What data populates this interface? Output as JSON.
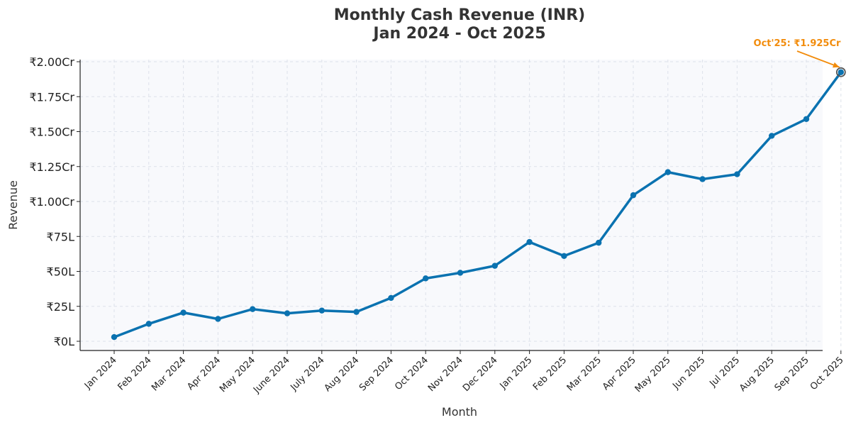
{
  "chart_data": {
    "type": "line",
    "title": "Monthly Cash Revenue (INR)",
    "subtitle": "Jan 2024 - Oct 2025",
    "xlabel": "Month",
    "ylabel": "Revenue",
    "categories": [
      "Jan 2024",
      "Feb 2024",
      "Mar 2024",
      "Apr 2024",
      "May 2024",
      "June 2024",
      "July 2024",
      "Aug 2024",
      "Sep 2024",
      "Oct 2024",
      "Nov 2024",
      "Dec 2024",
      "Jan 2025",
      "Feb 2025",
      "Mar 2025",
      "Apr 2025",
      "May 2025",
      "Jun 2025",
      "Jul 2025",
      "Aug 2025",
      "Sep 2025",
      "Oct 2025"
    ],
    "series": [
      {
        "name": "Revenue",
        "values": [
          3,
          12.5,
          20.5,
          16,
          23,
          20,
          22,
          21,
          31,
          45,
          49,
          54,
          71,
          61,
          70.5,
          104.5,
          121,
          116,
          119.5,
          147,
          159,
          192.5
        ]
      }
    ],
    "y_unit": "lakh INR",
    "ylim": [
      0,
      200
    ],
    "yticks": [
      {
        "value": 0,
        "label": "₹0L"
      },
      {
        "value": 25,
        "label": "₹25L"
      },
      {
        "value": 50,
        "label": "₹50L"
      },
      {
        "value": 75,
        "label": "₹75L"
      },
      {
        "value": 100,
        "label": "₹1.00Cr"
      },
      {
        "value": 125,
        "label": "₹1.25Cr"
      },
      {
        "value": 150,
        "label": "₹1.50Cr"
      },
      {
        "value": 175,
        "label": "₹1.75Cr"
      },
      {
        "value": 200,
        "label": "₹2.00Cr"
      }
    ],
    "grid": true,
    "annotation": {
      "text": "Oct'25: ₹1.925Cr",
      "target_index": 21
    },
    "colors": {
      "line": "#0a72b0",
      "annotation": "#f28c0c",
      "background": "#f8f9fc",
      "grid": "#dde1ea"
    }
  }
}
